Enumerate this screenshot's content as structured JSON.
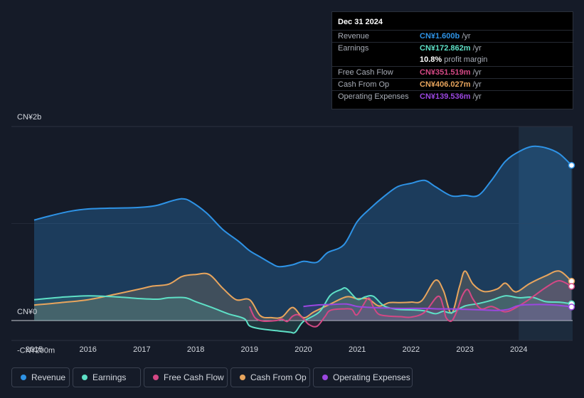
{
  "chart_data": {
    "type": "area",
    "y_unit": "CN¥ millions",
    "ylim": [
      -200,
      2000
    ],
    "y_tick_labels": [
      {
        "value": 2000,
        "label": "CN¥2b"
      },
      {
        "value": 0,
        "label": "CN¥0"
      },
      {
        "value": -200,
        "label": "-CN¥200m"
      }
    ],
    "x_tick_labels": [
      "2015",
      "2016",
      "2017",
      "2018",
      "2019",
      "2020",
      "2021",
      "2022",
      "2023",
      "2024"
    ],
    "xlim": [
      2014.75,
      2025.0
    ],
    "highlight_start": 2024.0,
    "series": [
      {
        "name": "Revenue",
        "color": "#2e93e6",
        "x": [
          2015.0,
          2015.3,
          2015.7,
          2016.0,
          2016.4,
          2016.8,
          2017.1,
          2017.3,
          2017.6,
          2017.75,
          2017.9,
          2018.2,
          2018.5,
          2018.8,
          2019.0,
          2019.2,
          2019.4,
          2019.55,
          2019.8,
          2020.0,
          2020.25,
          2020.45,
          2020.75,
          2021.0,
          2021.25,
          2021.5,
          2021.75,
          2022.0,
          2022.25,
          2022.45,
          2022.75,
          2023.0,
          2023.25,
          2023.5,
          2023.75,
          2024.0,
          2024.25,
          2024.5,
          2024.75,
          2024.98
        ],
        "y": [
          1035,
          1080,
          1130,
          1150,
          1158,
          1162,
          1172,
          1190,
          1240,
          1255,
          1230,
          1110,
          940,
          815,
          720,
          655,
          590,
          555,
          575,
          610,
          600,
          700,
          780,
          1020,
          1160,
          1280,
          1380,
          1415,
          1445,
          1380,
          1285,
          1290,
          1290,
          1450,
          1640,
          1740,
          1795,
          1780,
          1720,
          1600
        ]
      },
      {
        "name": "Earnings",
        "color": "#5ee0c6",
        "x": [
          2015.0,
          2015.5,
          2016.0,
          2016.5,
          2017.0,
          2017.3,
          2017.5,
          2017.8,
          2018.0,
          2018.3,
          2018.6,
          2018.9,
          2019.0,
          2019.2,
          2019.5,
          2019.75,
          2019.85,
          2020.0,
          2020.3,
          2020.5,
          2020.7,
          2020.8,
          2021.0,
          2021.15,
          2021.3,
          2021.5,
          2021.75,
          2022.0,
          2022.25,
          2022.45,
          2022.6,
          2022.75,
          2023.0,
          2023.25,
          2023.5,
          2023.75,
          2024.0,
          2024.25,
          2024.5,
          2024.75,
          2024.98
        ],
        "y": [
          215,
          240,
          255,
          245,
          225,
          220,
          235,
          235,
          195,
          135,
          70,
          20,
          -55,
          -85,
          -105,
          -120,
          -120,
          -10,
          90,
          260,
          320,
          330,
          220,
          245,
          250,
          150,
          115,
          110,
          100,
          70,
          95,
          80,
          150,
          175,
          210,
          255,
          235,
          240,
          195,
          190,
          173
        ]
      },
      {
        "name": "Free Cash Flow",
        "color": "#d44885",
        "x": [
          2019.0,
          2019.1,
          2019.25,
          2019.5,
          2019.6,
          2019.7,
          2019.8,
          2019.9,
          2020.0,
          2020.1,
          2020.25,
          2020.4,
          2020.5,
          2020.75,
          2020.9,
          2021.0,
          2021.2,
          2021.3,
          2021.4,
          2021.6,
          2021.8,
          2022.0,
          2022.25,
          2022.5,
          2022.6,
          2022.65,
          2022.75,
          2022.85,
          2022.95,
          2023.05,
          2023.15,
          2023.3,
          2023.5,
          2023.75,
          2024.0,
          2024.25,
          2024.5,
          2024.75,
          2024.98
        ],
        "y": [
          145,
          30,
          -5,
          0,
          15,
          -10,
          45,
          60,
          20,
          -40,
          -60,
          40,
          105,
          120,
          115,
          60,
          230,
          140,
          65,
          45,
          40,
          35,
          85,
          250,
          140,
          30,
          -5,
          95,
          255,
          320,
          220,
          120,
          145,
          90,
          150,
          240,
          340,
          410,
          352
        ]
      },
      {
        "name": "Cash From Op",
        "color": "#e8a55d",
        "x": [
          2015.0,
          2015.5,
          2016.0,
          2016.5,
          2017.0,
          2017.2,
          2017.5,
          2017.75,
          2018.0,
          2018.25,
          2018.5,
          2018.75,
          2019.0,
          2019.2,
          2019.4,
          2019.6,
          2019.8,
          2020.0,
          2020.2,
          2020.5,
          2020.8,
          2021.0,
          2021.2,
          2021.4,
          2021.6,
          2021.8,
          2022.0,
          2022.2,
          2022.45,
          2022.6,
          2022.75,
          2022.9,
          2023.0,
          2023.15,
          2023.35,
          2023.6,
          2023.75,
          2023.9,
          2024.0,
          2024.2,
          2024.5,
          2024.75,
          2024.98
        ],
        "y": [
          160,
          185,
          215,
          270,
          330,
          355,
          375,
          455,
          475,
          475,
          335,
          215,
          215,
          50,
          30,
          35,
          135,
          30,
          90,
          170,
          245,
          225,
          225,
          150,
          185,
          185,
          190,
          205,
          415,
          310,
          75,
          350,
          510,
          375,
          300,
          325,
          385,
          305,
          305,
          380,
          460,
          510,
          406
        ]
      },
      {
        "name": "Operating Expenses",
        "color": "#9b47e0",
        "x": [
          2020.0,
          2020.25,
          2020.5,
          2020.8,
          2021.0,
          2021.25,
          2021.5,
          2021.75,
          2022.0,
          2022.3,
          2022.5,
          2022.75,
          2023.0,
          2023.3,
          2023.6,
          2023.8,
          2024.0,
          2024.3,
          2024.6,
          2024.85,
          2024.98
        ],
        "y": [
          145,
          160,
          165,
          170,
          145,
          135,
          130,
          125,
          125,
          125,
          120,
          120,
          115,
          110,
          105,
          115,
          155,
          165,
          162,
          150,
          140
        ]
      }
    ],
    "tooltip": {
      "date": "Dec 31 2024",
      "rows": [
        {
          "label": "Revenue",
          "value": "CN¥1.600b",
          "unit": "/yr",
          "color": "#2e93e6"
        },
        {
          "label": "Earnings",
          "value": "CN¥172.862m",
          "unit": "/yr",
          "color": "#5ee0c6"
        },
        {
          "label": "",
          "value": "10.8%",
          "unit": "profit margin",
          "color": "#ffffff"
        },
        {
          "label": "Free Cash Flow",
          "value": "CN¥351.519m",
          "unit": "/yr",
          "color": "#d44885"
        },
        {
          "label": "Cash From Op",
          "value": "CN¥406.027m",
          "unit": "/yr",
          "color": "#e8a55d"
        },
        {
          "label": "Operating Expenses",
          "value": "CN¥139.536m",
          "unit": "/yr",
          "color": "#9b47e0"
        }
      ]
    }
  }
}
